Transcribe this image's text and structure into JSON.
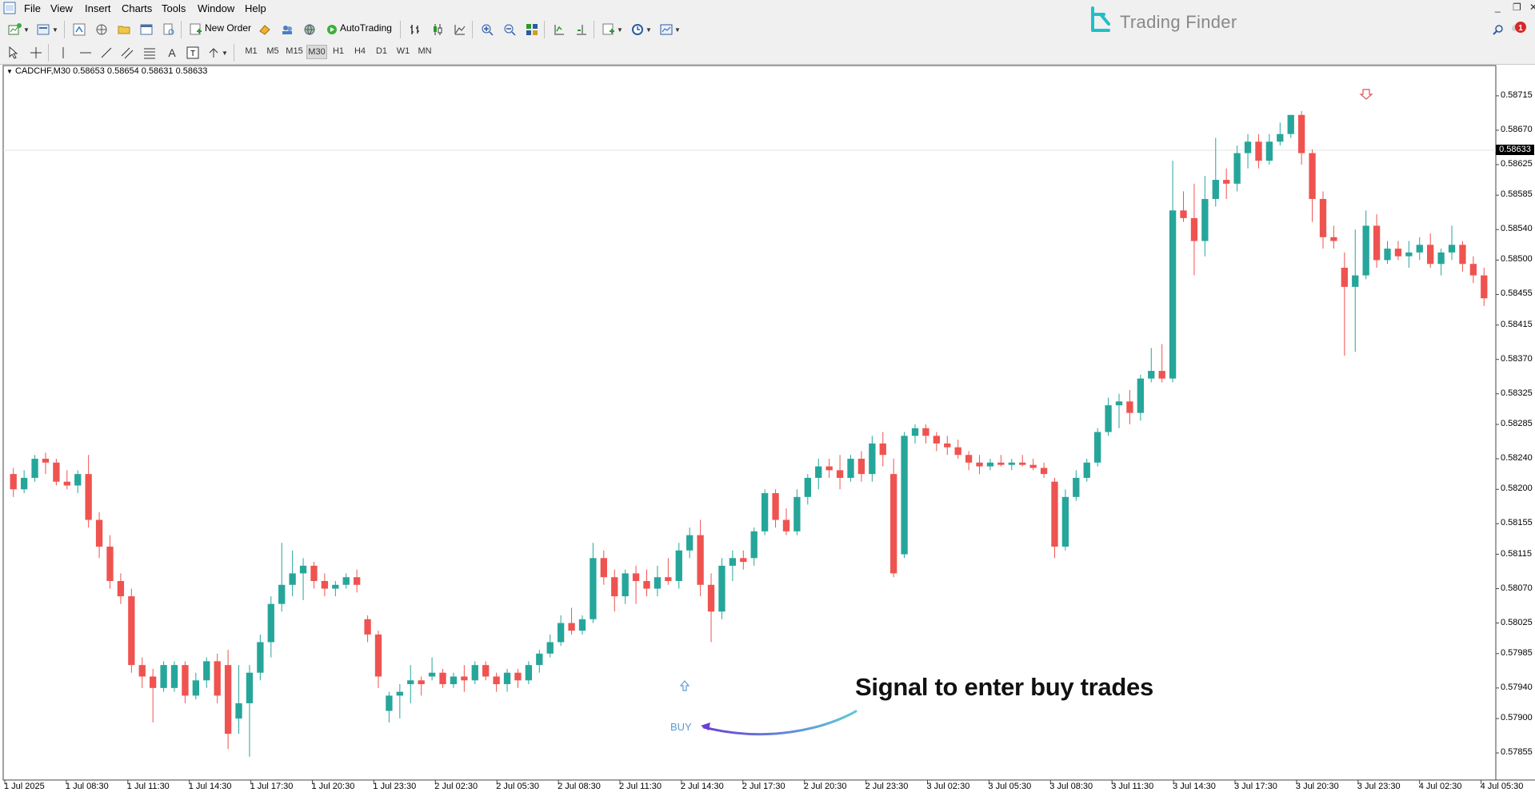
{
  "menu": [
    "File",
    "View",
    "Insert",
    "Charts",
    "Tools",
    "Window",
    "Help"
  ],
  "toolbar": {
    "new_order_label": "New Order",
    "autotrading_label": "AutoTrading"
  },
  "timeframes": [
    "M1",
    "M5",
    "M15",
    "M30",
    "H1",
    "H4",
    "D1",
    "W1",
    "MN"
  ],
  "active_timeframe": "M30",
  "brand": {
    "name": "Trading Finder",
    "color": "#1fc0c8"
  },
  "chart": {
    "symbol_info": "CADCHF,M30  0.58653 0.58654 0.58631 0.58633",
    "current_price": "0.58633",
    "buy_label": "BUY",
    "annotation": "Signal to enter buy trades",
    "colors": {
      "bull": "#26a69a",
      "bear": "#ef5350",
      "buy_arrow": "#5b9bd5",
      "sell_arrow": "#e15252",
      "pointer_start": "#6a3fd6",
      "pointer_end": "#5ecad6"
    }
  },
  "price_scale": [
    "0.58715",
    "0.58670",
    "0.58625",
    "0.58585",
    "0.58540",
    "0.58500",
    "0.58455",
    "0.58415",
    "0.58370",
    "0.58325",
    "0.58285",
    "0.58240",
    "0.58200",
    "0.58155",
    "0.58115",
    "0.58070",
    "0.58025",
    "0.57985",
    "0.57940",
    "0.57900",
    "0.57855"
  ],
  "time_scale": [
    "1 Jul 2025",
    "1 Jul 08:30",
    "1 Jul 11:30",
    "1 Jul 14:30",
    "1 Jul 17:30",
    "1 Jul 20:30",
    "1 Jul 23:30",
    "2 Jul 02:30",
    "2 Jul 05:30",
    "2 Jul 08:30",
    "2 Jul 11:30",
    "2 Jul 14:30",
    "2 Jul 17:30",
    "2 Jul 20:30",
    "2 Jul 23:30",
    "3 Jul 02:30",
    "3 Jul 05:30",
    "3 Jul 08:30",
    "3 Jul 11:30",
    "3 Jul 14:30",
    "3 Jul 17:30",
    "3 Jul 20:30",
    "3 Jul 23:30",
    "4 Jul 02:30",
    "4 Jul 05:30"
  ],
  "chart_data": {
    "type": "candlestick",
    "ohlc": [
      [
        0.5822,
        0.58228,
        0.5819,
        0.582
      ],
      [
        0.582,
        0.58225,
        0.58195,
        0.58215
      ],
      [
        0.58215,
        0.58245,
        0.5821,
        0.5824
      ],
      [
        0.5824,
        0.58248,
        0.5822,
        0.58235
      ],
      [
        0.58235,
        0.5824,
        0.58205,
        0.5821
      ],
      [
        0.5821,
        0.58225,
        0.582,
        0.58205
      ],
      [
        0.58205,
        0.58225,
        0.58195,
        0.5822
      ],
      [
        0.5822,
        0.58245,
        0.5815,
        0.5816
      ],
      [
        0.5816,
        0.5817,
        0.5811,
        0.58125
      ],
      [
        0.58125,
        0.5814,
        0.5807,
        0.5808
      ],
      [
        0.5808,
        0.5809,
        0.5805,
        0.5806
      ],
      [
        0.5806,
        0.5807,
        0.5796,
        0.5797
      ],
      [
        0.5797,
        0.5798,
        0.5794,
        0.57955
      ],
      [
        0.57955,
        0.57965,
        0.57895,
        0.5794
      ],
      [
        0.5794,
        0.57975,
        0.57935,
        0.5797
      ],
      [
        0.5794,
        0.57975,
        0.57935,
        0.5797
      ],
      [
        0.5797,
        0.57975,
        0.5792,
        0.5793
      ],
      [
        0.5793,
        0.5796,
        0.57925,
        0.5795
      ],
      [
        0.5795,
        0.5798,
        0.5794,
        0.57975
      ],
      [
        0.57975,
        0.57985,
        0.5792,
        0.5793
      ],
      [
        0.5797,
        0.5799,
        0.5786,
        0.5788
      ],
      [
        0.579,
        0.5797,
        0.5788,
        0.5792
      ],
      [
        0.5792,
        0.5797,
        0.5785,
        0.5796
      ],
      [
        0.5796,
        0.5801,
        0.5795,
        0.58
      ],
      [
        0.58,
        0.5806,
        0.5798,
        0.5805
      ],
      [
        0.5805,
        0.5813,
        0.5804,
        0.58075
      ],
      [
        0.58075,
        0.5812,
        0.5806,
        0.5809
      ],
      [
        0.5809,
        0.5811,
        0.58055,
        0.581
      ],
      [
        0.581,
        0.58105,
        0.5807,
        0.5808
      ],
      [
        0.5808,
        0.5809,
        0.5806,
        0.5807
      ],
      [
        0.5807,
        0.5808,
        0.5806,
        0.58075
      ],
      [
        0.58075,
        0.5809,
        0.5807,
        0.58085
      ],
      [
        0.58085,
        0.58095,
        0.58065,
        0.58075
      ],
      [
        0.5803,
        0.58035,
        0.58,
        0.5801
      ],
      [
        0.5801,
        0.58015,
        0.5794,
        0.57955
      ],
      [
        0.5791,
        0.57935,
        0.57895,
        0.5793
      ],
      [
        0.5793,
        0.57945,
        0.579,
        0.57935
      ],
      [
        0.57945,
        0.5797,
        0.5792,
        0.5795
      ],
      [
        0.5795,
        0.57955,
        0.5793,
        0.57945
      ],
      [
        0.57955,
        0.5798,
        0.5795,
        0.5796
      ],
      [
        0.5796,
        0.57965,
        0.5794,
        0.57945
      ],
      [
        0.57945,
        0.5796,
        0.5794,
        0.57955
      ],
      [
        0.57955,
        0.5797,
        0.57935,
        0.5795
      ],
      [
        0.5795,
        0.57975,
        0.57945,
        0.5797
      ],
      [
        0.5797,
        0.57975,
        0.5795,
        0.57955
      ],
      [
        0.57955,
        0.5796,
        0.57935,
        0.57945
      ],
      [
        0.57945,
        0.57965,
        0.57935,
        0.5796
      ],
      [
        0.5796,
        0.57965,
        0.5794,
        0.5795
      ],
      [
        0.5795,
        0.57975,
        0.57945,
        0.5797
      ],
      [
        0.5797,
        0.5799,
        0.5796,
        0.57985
      ],
      [
        0.57985,
        0.5801,
        0.5798,
        0.58
      ],
      [
        0.58,
        0.58035,
        0.57995,
        0.58025
      ],
      [
        0.58025,
        0.58045,
        0.5801,
        0.58015
      ],
      [
        0.58015,
        0.58035,
        0.5801,
        0.5803
      ],
      [
        0.5803,
        0.5813,
        0.58025,
        0.5811
      ],
      [
        0.5811,
        0.5812,
        0.58075,
        0.58085
      ],
      [
        0.58085,
        0.58095,
        0.5804,
        0.5806
      ],
      [
        0.5806,
        0.58095,
        0.5805,
        0.5809
      ],
      [
        0.5809,
        0.581,
        0.5805,
        0.5808
      ],
      [
        0.5808,
        0.58095,
        0.5806,
        0.5807
      ],
      [
        0.5807,
        0.581,
        0.5806,
        0.58085
      ],
      [
        0.58085,
        0.5811,
        0.58075,
        0.5808
      ],
      [
        0.5808,
        0.5813,
        0.5807,
        0.5812
      ],
      [
        0.5812,
        0.5815,
        0.5811,
        0.5814
      ],
      [
        0.5814,
        0.5816,
        0.5806,
        0.58075
      ],
      [
        0.58075,
        0.5809,
        0.58,
        0.5804
      ],
      [
        0.5804,
        0.5811,
        0.5803,
        0.581
      ],
      [
        0.581,
        0.5812,
        0.5808,
        0.5811
      ],
      [
        0.5811,
        0.5812,
        0.58095,
        0.58105
      ],
      [
        0.5811,
        0.5815,
        0.581,
        0.58145
      ],
      [
        0.58145,
        0.582,
        0.5814,
        0.58195
      ],
      [
        0.58195,
        0.582,
        0.5815,
        0.5816
      ],
      [
        0.5816,
        0.58175,
        0.5814,
        0.58145
      ],
      [
        0.58145,
        0.582,
        0.5814,
        0.5819
      ],
      [
        0.5819,
        0.5822,
        0.5818,
        0.58215
      ],
      [
        0.58215,
        0.5824,
        0.582,
        0.5823
      ],
      [
        0.5823,
        0.5824,
        0.58215,
        0.58225
      ],
      [
        0.58225,
        0.58245,
        0.582,
        0.58215
      ],
      [
        0.58215,
        0.58245,
        0.5821,
        0.5824
      ],
      [
        0.5824,
        0.5825,
        0.5821,
        0.5822
      ],
      [
        0.5822,
        0.5827,
        0.5821,
        0.5826
      ],
      [
        0.5826,
        0.58275,
        0.5823,
        0.58245
      ],
      [
        0.5822,
        0.5824,
        0.58085,
        0.5809
      ],
      [
        0.58115,
        0.58275,
        0.5811,
        0.5827
      ],
      [
        0.5827,
        0.58285,
        0.5826,
        0.5828
      ],
      [
        0.5828,
        0.58285,
        0.5826,
        0.5827
      ],
      [
        0.5827,
        0.58275,
        0.5825,
        0.5826
      ],
      [
        0.5826,
        0.5827,
        0.58245,
        0.58255
      ],
      [
        0.58255,
        0.58265,
        0.5824,
        0.58245
      ],
      [
        0.58245,
        0.5825,
        0.58225,
        0.58235
      ],
      [
        0.58235,
        0.58245,
        0.5822,
        0.5823
      ],
      [
        0.5823,
        0.5824,
        0.58225,
        0.58235
      ],
      [
        0.58235,
        0.58245,
        0.5823,
        0.58232
      ],
      [
        0.58232,
        0.5824,
        0.58225,
        0.58235
      ],
      [
        0.58235,
        0.58245,
        0.5823,
        0.58232
      ],
      [
        0.58232,
        0.5824,
        0.58225,
        0.58228
      ],
      [
        0.58228,
        0.58235,
        0.58215,
        0.5822
      ],
      [
        0.5821,
        0.58215,
        0.5811,
        0.58125
      ],
      [
        0.58125,
        0.582,
        0.5812,
        0.5819
      ],
      [
        0.5819,
        0.58225,
        0.58185,
        0.58215
      ],
      [
        0.58215,
        0.5824,
        0.5821,
        0.58235
      ],
      [
        0.58235,
        0.5828,
        0.5823,
        0.58275
      ],
      [
        0.58275,
        0.5832,
        0.5827,
        0.5831
      ],
      [
        0.5831,
        0.58325,
        0.5828,
        0.58315
      ],
      [
        0.58315,
        0.5833,
        0.58285,
        0.583
      ],
      [
        0.583,
        0.5835,
        0.5829,
        0.58345
      ],
      [
        0.58345,
        0.58385,
        0.5834,
        0.58355
      ],
      [
        0.58355,
        0.5839,
        0.5834,
        0.58345
      ],
      [
        0.58345,
        0.5863,
        0.5834,
        0.58565
      ],
      [
        0.58565,
        0.5859,
        0.5855,
        0.58555
      ],
      [
        0.58555,
        0.586,
        0.5848,
        0.58525
      ],
      [
        0.58525,
        0.5861,
        0.58505,
        0.5858
      ],
      [
        0.5858,
        0.5866,
        0.5857,
        0.58605
      ],
      [
        0.58605,
        0.5862,
        0.5858,
        0.586
      ],
      [
        0.586,
        0.5865,
        0.5859,
        0.5864
      ],
      [
        0.5864,
        0.58665,
        0.5862,
        0.58655
      ],
      [
        0.58655,
        0.58665,
        0.5862,
        0.5863
      ],
      [
        0.5863,
        0.58665,
        0.58625,
        0.58655
      ],
      [
        0.58655,
        0.5868,
        0.5865,
        0.58665
      ],
      [
        0.58665,
        0.5869,
        0.5866,
        0.5869
      ],
      [
        0.5869,
        0.58695,
        0.58625,
        0.5864
      ],
      [
        0.5864,
        0.58645,
        0.5855,
        0.5858
      ],
      [
        0.5858,
        0.5859,
        0.58515,
        0.5853
      ],
      [
        0.5853,
        0.58545,
        0.58515,
        0.58525
      ],
      [
        0.5849,
        0.5851,
        0.58375,
        0.58465
      ],
      [
        0.58465,
        0.5854,
        0.5838,
        0.5848
      ],
      [
        0.5848,
        0.58565,
        0.58475,
        0.58545
      ],
      [
        0.58545,
        0.5856,
        0.5849,
        0.585
      ],
      [
        0.585,
        0.58525,
        0.58495,
        0.58515
      ],
      [
        0.58515,
        0.58525,
        0.585,
        0.58505
      ],
      [
        0.58505,
        0.58525,
        0.5849,
        0.5851
      ],
      [
        0.5851,
        0.5853,
        0.585,
        0.5852
      ],
      [
        0.5852,
        0.58535,
        0.5849,
        0.58495
      ],
      [
        0.58495,
        0.58515,
        0.5848,
        0.5851
      ],
      [
        0.5851,
        0.58545,
        0.585,
        0.5852
      ],
      [
        0.5852,
        0.58525,
        0.58485,
        0.58495
      ],
      [
        0.58495,
        0.58505,
        0.5847,
        0.5848
      ],
      [
        0.5848,
        0.5849,
        0.5844,
        0.5845
      ]
    ],
    "signals": [
      {
        "type": "buy",
        "candle_index": 64
      },
      {
        "type": "sell",
        "candle_index": 121
      }
    ],
    "ylim": [
      0.5783,
      0.5874
    ]
  }
}
